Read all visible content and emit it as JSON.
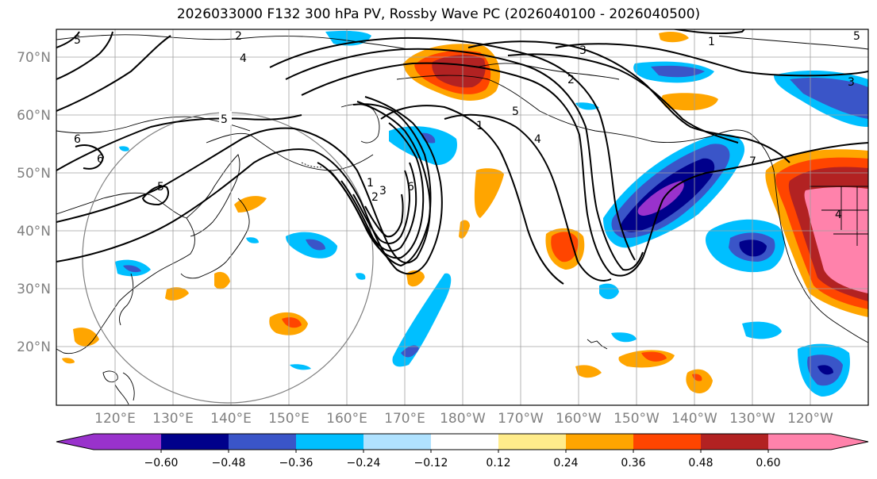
{
  "title": "2026033000 F132 300 hPa PV, Rossby Wave PC (2026040100 - 2026040500)",
  "lat_labels": [
    "70°N",
    "60°N",
    "50°N",
    "40°N",
    "30°N",
    "20°N"
  ],
  "lon_labels": [
    "120°E",
    "130°E",
    "140°E",
    "150°E",
    "160°E",
    "170°E",
    "180°W",
    "170°W",
    "160°W",
    "150°W",
    "140°W",
    "130°W",
    "120°W"
  ],
  "contour_labels": [
    "1",
    "2",
    "3",
    "4",
    "5",
    "6",
    "1",
    "5",
    "6",
    "1",
    "2",
    "3",
    "4",
    "5",
    "6",
    "2",
    "7",
    "3",
    "4",
    "5",
    "5"
  ],
  "colorbar": {
    "ticks": [
      "−0.60",
      "−0.48",
      "−0.36",
      "−0.24",
      "−0.12",
      "0.12",
      "0.24",
      "0.36",
      "0.48",
      "0.60"
    ],
    "colors": [
      "#9932cc",
      "#00008b",
      "#3a55c8",
      "#00bfff",
      "#b0e2ff",
      "#ffffff",
      "#ffec8b",
      "#ffa500",
      "#ff4500",
      "#b22222",
      "#ff82ab"
    ]
  },
  "shading_colors": {
    "neg_strong": "#00008b",
    "neg_mid": "#3a55c8",
    "neg_light": "#00bfff",
    "neg_faint": "#b0e2ff",
    "neg_extreme": "#9932cc",
    "pos_faint": "#ffec8b",
    "pos_light": "#ffa500",
    "pos_mid": "#ff4500",
    "pos_strong": "#b22222",
    "pos_extreme": "#ff82ab"
  }
}
